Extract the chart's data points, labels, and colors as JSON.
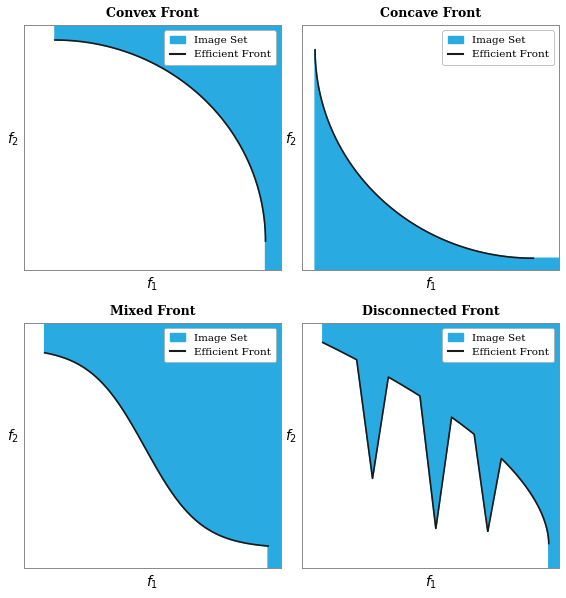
{
  "titles": [
    "Convex Front",
    "Concave Front",
    "Mixed Front",
    "Disconnected Front"
  ],
  "xlabel": "$f_1$",
  "ylabel": "$f_2$",
  "fill_color": "#29ABE2",
  "line_color": "#1a1a1a",
  "background_color": "#ffffff",
  "legend_image_set": "Image Set",
  "legend_efficient_front": "Efficient Front",
  "title_fontsize": 9,
  "label_fontsize": 10,
  "legend_fontsize": 7.5
}
